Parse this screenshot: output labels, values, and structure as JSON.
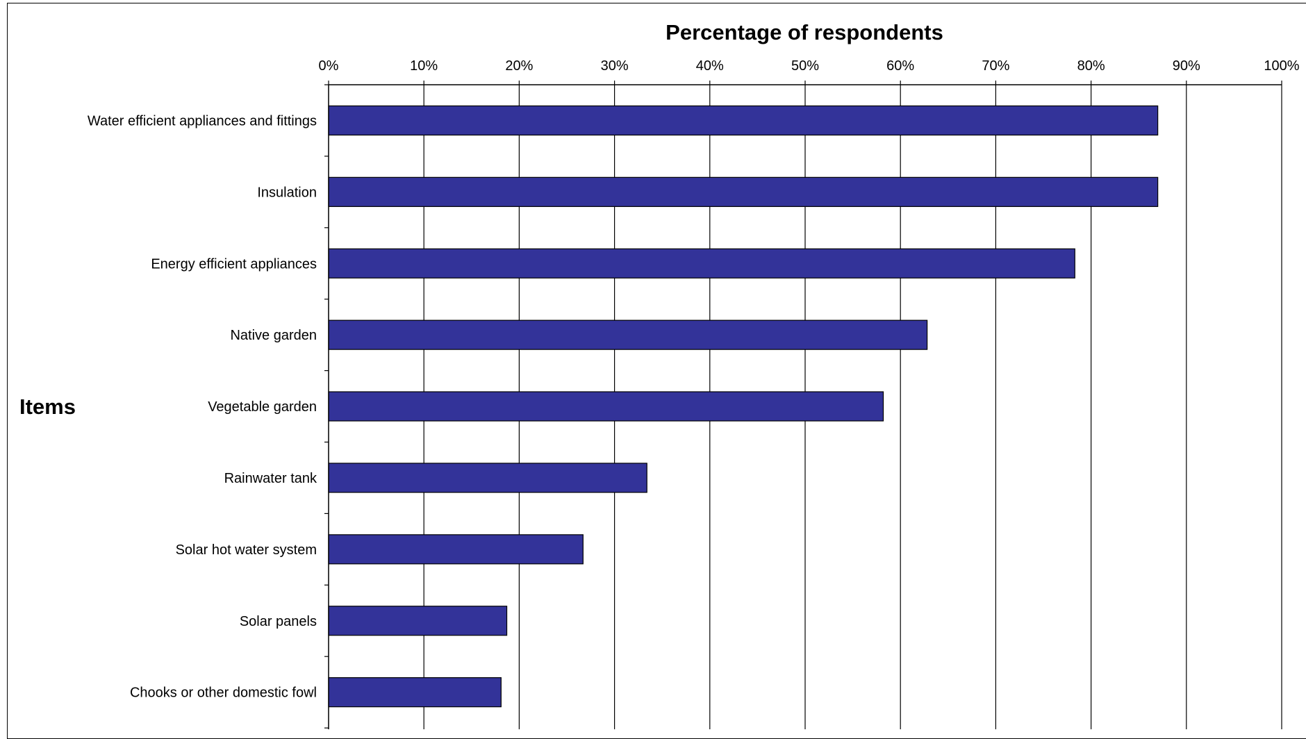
{
  "chart_data": {
    "type": "bar",
    "orientation": "horizontal",
    "xlabel": "Percentage of respondents",
    "ylabel": "Items",
    "xlim": [
      0,
      100
    ],
    "x_ticks": [
      "0%",
      "10%",
      "20%",
      "30%",
      "40%",
      "50%",
      "60%",
      "70%",
      "80%",
      "90%",
      "100%"
    ],
    "x_axis_position": "top",
    "grid": true,
    "categories": [
      "Water efficient appliances and fittings",
      "Insulation",
      "Energy efficient appliances",
      "Native garden",
      "Vegetable garden",
      "Rainwater tank",
      "Solar hot water system",
      "Solar panels",
      "Chooks or other domestic fowl"
    ],
    "values": [
      87,
      87,
      78.3,
      62.8,
      58.2,
      33.4,
      26.7,
      18.7,
      18.1
    ],
    "colors": {
      "bar_fill": "#333399",
      "bar_stroke": "#000000",
      "grid": "#000000"
    }
  }
}
